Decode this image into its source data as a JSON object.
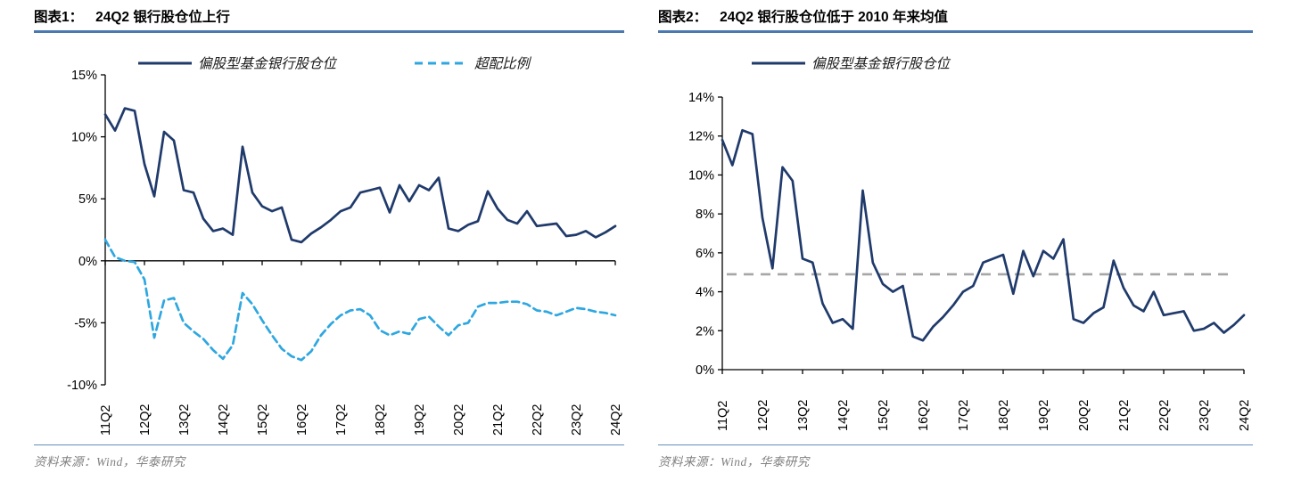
{
  "colors": {
    "series_navy": "#1f3a6b",
    "series_lightblue": "#2ea7e0",
    "reference_gray": "#a6a6a6",
    "title_rule_blue": "#4a78b0",
    "axis_black": "#000000",
    "source_gray": "#818181"
  },
  "chart_data": [
    {
      "type": "line",
      "figure_label": "图表1：",
      "title": "24Q2 银行股仓位上行",
      "source_note": "资料来源：Wind，华泰研究",
      "categories": [
        "11Q2",
        "11Q3",
        "11Q4",
        "12Q1",
        "12Q2",
        "12Q3",
        "12Q4",
        "13Q1",
        "13Q2",
        "13Q3",
        "13Q4",
        "14Q1",
        "14Q2",
        "14Q3",
        "14Q4",
        "15Q1",
        "15Q2",
        "15Q3",
        "15Q4",
        "16Q1",
        "16Q2",
        "16Q3",
        "16Q4",
        "17Q1",
        "17Q2",
        "17Q3",
        "17Q4",
        "18Q1",
        "18Q2",
        "18Q3",
        "18Q4",
        "19Q1",
        "19Q2",
        "19Q3",
        "19Q4",
        "20Q1",
        "20Q2",
        "20Q3",
        "20Q4",
        "21Q1",
        "21Q2",
        "21Q3",
        "21Q4",
        "22Q1",
        "22Q2",
        "22Q3",
        "22Q4",
        "23Q1",
        "23Q2",
        "23Q3",
        "23Q4",
        "24Q1",
        "24Q2"
      ],
      "x_tick_labels": [
        "11Q2",
        "12Q2",
        "13Q2",
        "14Q2",
        "15Q2",
        "16Q2",
        "17Q2",
        "18Q2",
        "19Q2",
        "20Q2",
        "21Q2",
        "22Q2",
        "23Q2",
        "24Q2"
      ],
      "series": [
        {
          "name": "偏股型基金银行股仓位",
          "style": "solid",
          "color": "#1f3a6b",
          "values": [
            11.8,
            10.5,
            12.3,
            12.1,
            7.8,
            5.2,
            10.4,
            9.7,
            5.7,
            5.5,
            3.4,
            2.4,
            2.6,
            2.1,
            9.2,
            5.5,
            4.4,
            4.0,
            4.3,
            1.7,
            1.5,
            2.2,
            2.7,
            3.3,
            4.0,
            4.3,
            5.5,
            5.7,
            5.9,
            3.9,
            6.1,
            4.8,
            6.1,
            5.7,
            6.7,
            2.6,
            2.4,
            2.9,
            3.2,
            5.6,
            4.2,
            3.3,
            3.0,
            4.0,
            2.8,
            2.9,
            3.0,
            2.0,
            2.1,
            2.4,
            1.9,
            2.3,
            2.8
          ]
        },
        {
          "name": "超配比例",
          "style": "dashed",
          "color": "#2ea7e0",
          "values": [
            1.7,
            0.3,
            0.0,
            -0.1,
            -1.5,
            -6.2,
            -3.2,
            -3.0,
            -5.0,
            -5.7,
            -6.3,
            -7.2,
            -7.9,
            -6.8,
            -2.6,
            -3.5,
            -4.8,
            -6.0,
            -7.1,
            -7.7,
            -8.0,
            -7.3,
            -6.0,
            -5.1,
            -4.4,
            -4.0,
            -3.9,
            -4.4,
            -5.6,
            -6.0,
            -5.7,
            -5.9,
            -4.7,
            -4.5,
            -5.3,
            -6.0,
            -5.2,
            -5.0,
            -3.7,
            -3.4,
            -3.4,
            -3.3,
            -3.3,
            -3.5,
            -4.0,
            -4.1,
            -4.4,
            -4.1,
            -3.8,
            -3.9,
            -4.1,
            -4.2,
            -4.4
          ]
        }
      ],
      "ylim": [
        -10,
        15
      ],
      "yticks": [
        15,
        10,
        5,
        0,
        -5,
        -10
      ],
      "ytick_suffix": "%",
      "x_axis_at_value": 0,
      "grid": false,
      "legend_position": "top"
    },
    {
      "type": "line",
      "figure_label": "图表2：",
      "title": "24Q2 银行股仓位低于 2010 年来均值",
      "source_note": "资料来源：Wind，华泰研究",
      "categories": [
        "11Q2",
        "11Q3",
        "11Q4",
        "12Q1",
        "12Q2",
        "12Q3",
        "12Q4",
        "13Q1",
        "13Q2",
        "13Q3",
        "13Q4",
        "14Q1",
        "14Q2",
        "14Q3",
        "14Q4",
        "15Q1",
        "15Q2",
        "15Q3",
        "15Q4",
        "16Q1",
        "16Q2",
        "16Q3",
        "16Q4",
        "17Q1",
        "17Q2",
        "17Q3",
        "17Q4",
        "18Q1",
        "18Q2",
        "18Q3",
        "18Q4",
        "19Q1",
        "19Q2",
        "19Q3",
        "19Q4",
        "20Q1",
        "20Q2",
        "20Q3",
        "20Q4",
        "21Q1",
        "21Q2",
        "21Q3",
        "21Q4",
        "22Q1",
        "22Q2",
        "22Q3",
        "22Q4",
        "23Q1",
        "23Q2",
        "23Q3",
        "23Q4",
        "24Q1",
        "24Q2"
      ],
      "x_tick_labels": [
        "11Q2",
        "12Q2",
        "13Q2",
        "14Q2",
        "15Q2",
        "16Q2",
        "17Q2",
        "18Q2",
        "19Q2",
        "20Q2",
        "21Q2",
        "22Q2",
        "23Q2",
        "24Q2"
      ],
      "series": [
        {
          "name": "偏股型基金银行股仓位",
          "style": "solid",
          "color": "#1f3a6b",
          "values": [
            11.8,
            10.5,
            12.3,
            12.1,
            7.8,
            5.2,
            10.4,
            9.7,
            5.7,
            5.5,
            3.4,
            2.4,
            2.6,
            2.1,
            9.2,
            5.5,
            4.4,
            4.0,
            4.3,
            1.7,
            1.5,
            2.2,
            2.7,
            3.3,
            4.0,
            4.3,
            5.5,
            5.7,
            5.9,
            3.9,
            6.1,
            4.8,
            6.1,
            5.7,
            6.7,
            2.6,
            2.4,
            2.9,
            3.2,
            5.6,
            4.2,
            3.3,
            3.0,
            4.0,
            2.8,
            2.9,
            3.0,
            2.0,
            2.1,
            2.4,
            1.9,
            2.3,
            2.8
          ]
        }
      ],
      "reference_line": {
        "meaning": "2010年来均值",
        "value": 4.9,
        "style": "dashed",
        "color": "#a6a6a6"
      },
      "ylim": [
        0,
        14
      ],
      "yticks": [
        14,
        12,
        10,
        8,
        6,
        4,
        2,
        0
      ],
      "ytick_suffix": "%",
      "x_axis_at_value": 0,
      "grid": false,
      "legend_position": "top"
    }
  ]
}
